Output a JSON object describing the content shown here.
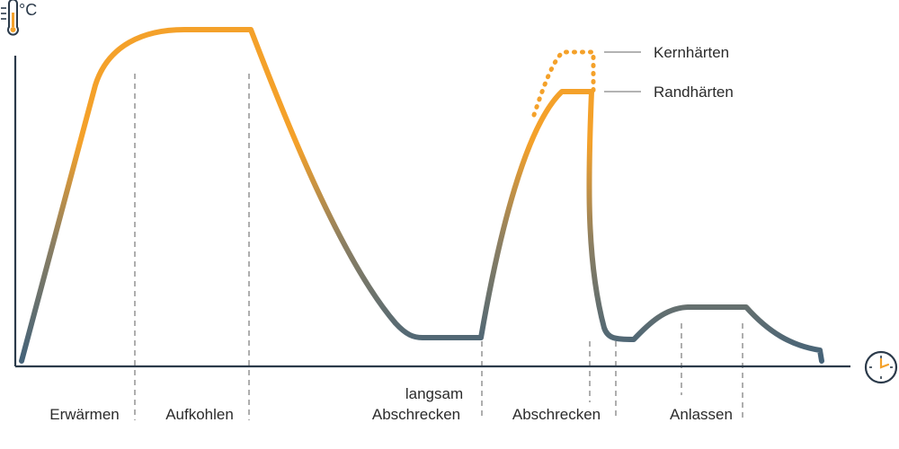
{
  "y_axis_unit": "°C",
  "icons": {
    "y_axis": "thermometer-icon",
    "x_axis": "clock-icon"
  },
  "colors": {
    "hot": "#f4a12a",
    "cool": "#456379",
    "axis": "#2b3a4a",
    "guide": "#9a9a9a"
  },
  "curves": [
    {
      "name": "Kernhärten",
      "style": "dotted"
    },
    {
      "name": "Randhärten",
      "style": "solid"
    }
  ],
  "phases": [
    {
      "label": "Erwärmen"
    },
    {
      "label": "Aufkohlen"
    },
    {
      "label_line1": "langsam",
      "label_line2": "Abschrecken"
    },
    {
      "label": "Abschrecken"
    },
    {
      "label": "Anlassen"
    }
  ]
}
